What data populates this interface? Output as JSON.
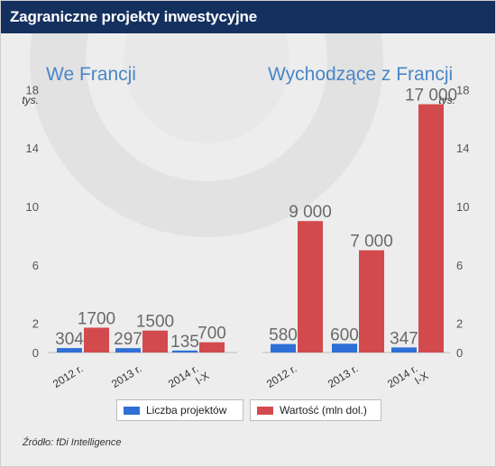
{
  "title": "Zagraniczne projekty inwestycyjne",
  "source": "Źródło: fDi Intelligence",
  "colors": {
    "title_bar": "#14305f",
    "count": "#2f6fd6",
    "value": "#d34a4e",
    "axis_text": "#555555",
    "subtitle": "#4a86c8"
  },
  "legend": [
    {
      "label": "Liczba projektów",
      "color": "#2f6fd6"
    },
    {
      "label": "Wartość (mln dol.)",
      "color": "#d34a4e"
    }
  ],
  "chart_data": [
    {
      "type": "bar",
      "title": "We Francji",
      "unit_label": "tys.",
      "categories": [
        [
          "2012 r."
        ],
        [
          "2013 r."
        ],
        [
          "2014 r.",
          "I-X"
        ]
      ],
      "yticks": [
        0,
        2,
        6,
        10,
        14,
        18
      ],
      "ylim": [
        0,
        18
      ],
      "series": [
        {
          "name": "Liczba projektów",
          "values": [
            304,
            297,
            135
          ],
          "labels": [
            "304",
            "297",
            "135"
          ],
          "color": "#2f6fd6"
        },
        {
          "name": "Wartość (mln dol.)",
          "values": [
            1700,
            1500,
            700
          ],
          "labels": [
            "1700",
            "1500",
            "700"
          ],
          "color": "#d34a4e"
        }
      ]
    },
    {
      "type": "bar",
      "title": "Wychodzące z Francji",
      "unit_label": "tys.",
      "categories": [
        [
          "2012 r."
        ],
        [
          "2013 r."
        ],
        [
          "2014 r.",
          "I-X"
        ]
      ],
      "yticks": [
        0,
        2,
        6,
        10,
        14,
        18
      ],
      "ylim": [
        0,
        18
      ],
      "series": [
        {
          "name": "Liczba projektów",
          "values": [
            580,
            600,
            347
          ],
          "labels": [
            "580",
            "600",
            "347"
          ],
          "color": "#2f6fd6"
        },
        {
          "name": "Wartość (mln dol.)",
          "values": [
            9000,
            7000,
            17000
          ],
          "labels": [
            "9 000",
            "7 000",
            "17 000"
          ],
          "color": "#d34a4e"
        }
      ]
    }
  ]
}
